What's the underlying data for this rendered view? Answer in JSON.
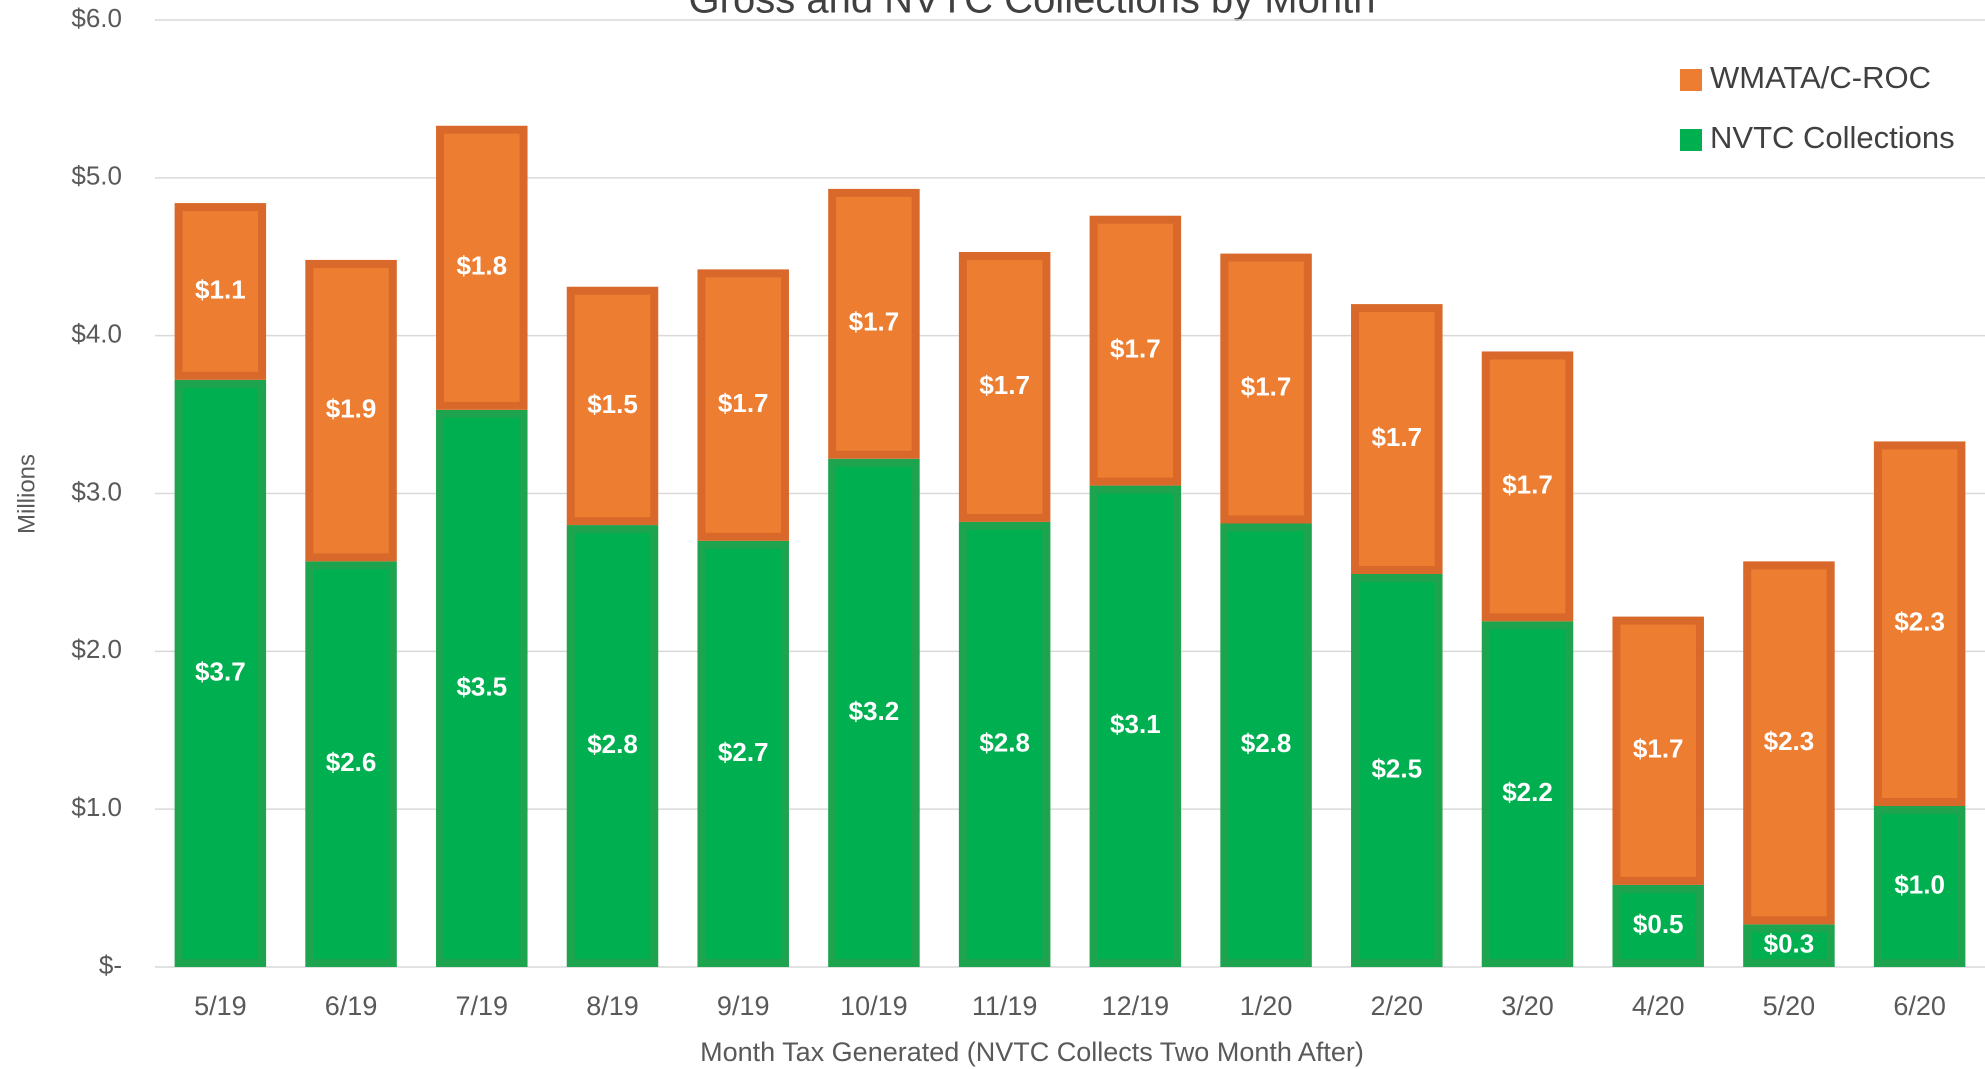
{
  "chart_data": {
    "type": "stacked_bar",
    "title": "Gross and NVTC Collections by Month",
    "x_label": "Month Tax Generated (NVTC Collects Two Month After)",
    "y_label": "Millions",
    "categories": [
      "5/19",
      "6/19",
      "7/19",
      "8/19",
      "9/19",
      "10/19",
      "11/19",
      "12/19",
      "1/20",
      "2/20",
      "3/20",
      "4/20",
      "5/20",
      "6/20"
    ],
    "series": [
      {
        "name": "NVTC Collections",
        "color": "#00b050",
        "border": "#1ea34e",
        "values": [
          3.72,
          2.57,
          3.53,
          2.8,
          2.7,
          3.22,
          2.82,
          3.05,
          2.81,
          2.49,
          2.19,
          0.52,
          0.27,
          1.02
        ],
        "value_labels": [
          "$3.7",
          "$2.6",
          "$3.5",
          "$2.8",
          "$2.7",
          "$3.2",
          "$2.8",
          "$3.1",
          "$2.8",
          "$2.5",
          "$2.2",
          "$0.5",
          "$0.3",
          "$1.0"
        ]
      },
      {
        "name": "WMATA/C-ROC",
        "color": "#ed7d31",
        "border": "#d9692a",
        "values": [
          1.12,
          1.91,
          1.8,
          1.51,
          1.72,
          1.71,
          1.71,
          1.71,
          1.71,
          1.71,
          1.71,
          1.7,
          2.3,
          2.31
        ],
        "value_labels": [
          "$1.1",
          "$1.9",
          "$1.8",
          "$1.5",
          "$1.7",
          "$1.7",
          "$1.7",
          "$1.7",
          "$1.7",
          "$1.7",
          "$1.7",
          "$1.7",
          "$2.3",
          "$2.3"
        ]
      }
    ],
    "ylim": [
      0,
      6
    ],
    "yticks": [
      {
        "value": 0,
        "label": "$-"
      },
      {
        "value": 1,
        "label": "$1.0"
      },
      {
        "value": 2,
        "label": "$2.0"
      },
      {
        "value": 3,
        "label": "$3.0"
      },
      {
        "value": 4,
        "label": "$4.0"
      },
      {
        "value": 5,
        "label": "$5.0"
      },
      {
        "value": 6,
        "label": "$6.0"
      }
    ],
    "grid": true,
    "legend": "top-right"
  }
}
